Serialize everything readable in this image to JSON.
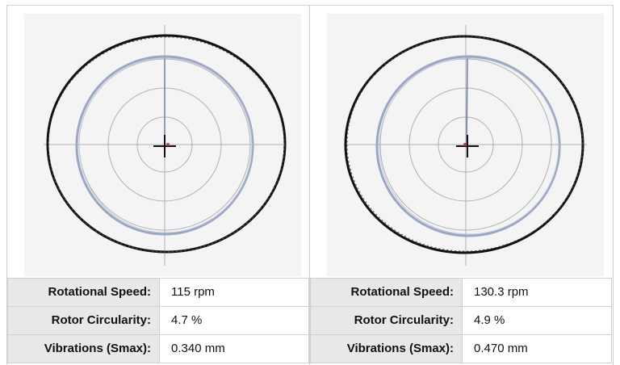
{
  "panels": [
    {
      "rows": [
        {
          "label": "Rotational Speed:",
          "value": "115 rpm"
        },
        {
          "label": "Rotor Circularity:",
          "value": "4.7 %"
        },
        {
          "label": "Vibrations (Smax):",
          "value": "0.340 mm"
        }
      ]
    },
    {
      "rows": [
        {
          "label": "Rotational Speed:",
          "value": "130.3 rpm"
        },
        {
          "label": "Rotor Circularity:",
          "value": "4.9 %"
        },
        {
          "label": "Vibrations (Smax):",
          "value": "0.470 mm"
        }
      ]
    }
  ],
  "colors": {
    "outer_ring": "#111111",
    "inner_trace": "#9aa6c4",
    "grid": "#b0b0b0",
    "plot_bg": "#f4f4f4"
  }
}
